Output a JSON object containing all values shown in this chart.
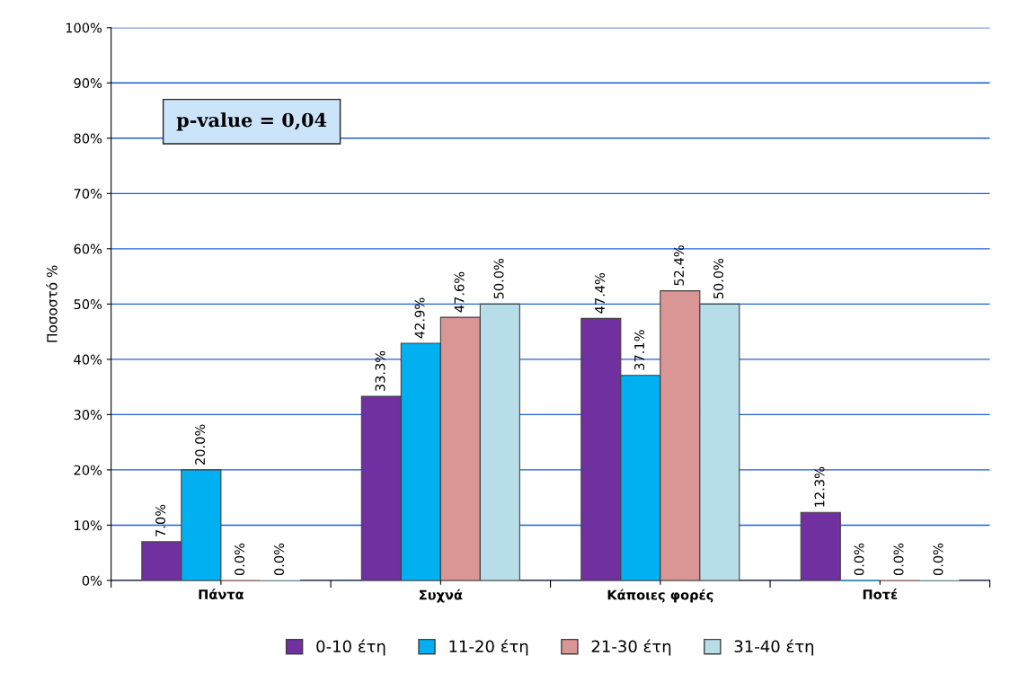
{
  "chart_data": {
    "type": "bar",
    "ylabel": "Ποσοστό %",
    "categories": [
      "Πάντα",
      "Συχνά",
      "Κάποιες φορές",
      "Ποτέ"
    ],
    "series": [
      {
        "name": "0-10 έτη",
        "color": "#7030a0",
        "values": [
          7.0,
          33.3,
          47.4,
          12.3
        ],
        "value_labels": [
          "7.0%",
          "33.3%",
          "47.4%",
          "12.3%"
        ]
      },
      {
        "name": "11-20 έτη",
        "color": "#00b0f0",
        "values": [
          20.0,
          42.9,
          37.1,
          0.0
        ],
        "value_labels": [
          "20.0%",
          "42.9%",
          "37.1%",
          "0.0%"
        ]
      },
      {
        "name": "21-30 έτη",
        "color": "#d99694",
        "values": [
          0.0,
          47.6,
          52.4,
          0.0
        ],
        "value_labels": [
          "0.0%",
          "47.6%",
          "52.4%",
          "0.0%"
        ]
      },
      {
        "name": "31-40 έτη",
        "color": "#b7dee8",
        "values": [
          0.0,
          50.0,
          50.0,
          0.0
        ],
        "value_labels": [
          "0.0%",
          "50.0%",
          "50.0%",
          "0.0%"
        ]
      }
    ],
    "ylim": [
      0,
      100
    ],
    "yticks": [
      {
        "value": 0,
        "label": "0%"
      },
      {
        "value": 10,
        "label": "10%"
      },
      {
        "value": 20,
        "label": "20%"
      },
      {
        "value": 30,
        "label": "30%"
      },
      {
        "value": 40,
        "label": "40%"
      },
      {
        "value": 50,
        "label": "50%"
      },
      {
        "value": 60,
        "label": "60%"
      },
      {
        "value": 70,
        "label": "70%"
      },
      {
        "value": 80,
        "label": "80%"
      },
      {
        "value": 90,
        "label": "90%"
      },
      {
        "value": 100,
        "label": "100%"
      }
    ],
    "grid": "y",
    "legend": "bottom",
    "annotations": [
      "p-value = 0,04"
    ]
  }
}
